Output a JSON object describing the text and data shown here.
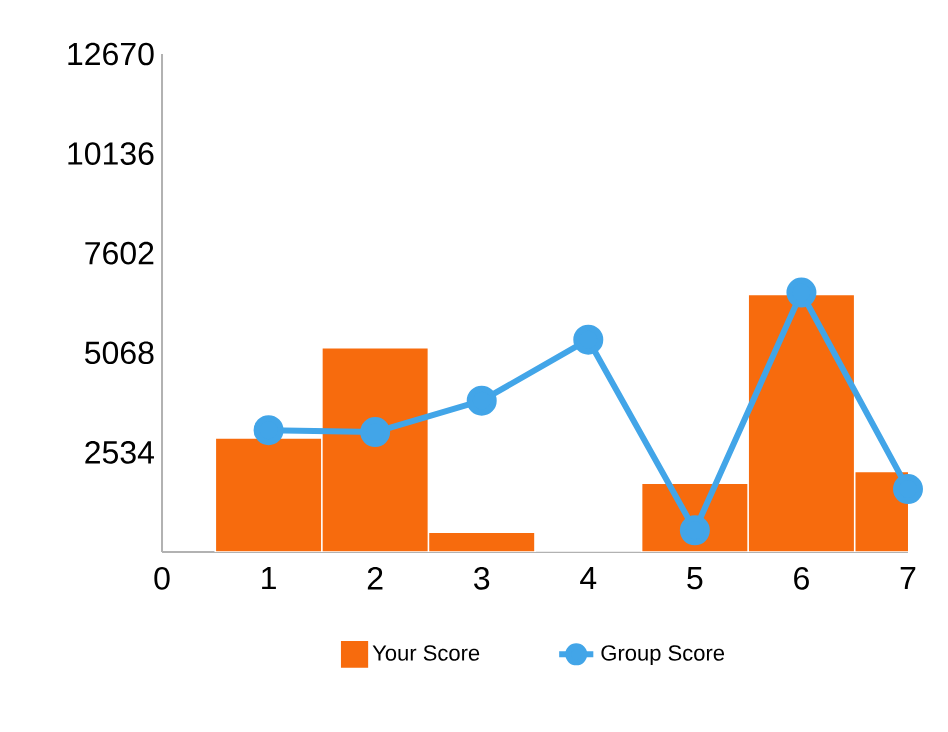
{
  "chart_data": {
    "type": "bar",
    "x": [
      1,
      2,
      3,
      4,
      5,
      6,
      7
    ],
    "series": [
      {
        "name": "Your Score",
        "color": "#f76b0d",
        "values": [
          2900,
          5200,
          500,
          0,
          1750,
          6550,
          2050
        ]
      },
      {
        "name": "Group Score",
        "type": "line",
        "color": "#42a5e8",
        "marker": "circle",
        "values": [
          3100,
          3050,
          3850,
          5400,
          550,
          6600,
          1600
        ]
      }
    ],
    "xlim": [
      0,
      7
    ],
    "xticks": [
      0,
      1,
      2,
      3,
      4,
      5,
      6,
      7
    ],
    "ylim": [
      0,
      12670
    ],
    "yticks": [
      2534,
      5068,
      7602,
      10136,
      12670
    ],
    "grid": false,
    "legend": "bottom"
  }
}
